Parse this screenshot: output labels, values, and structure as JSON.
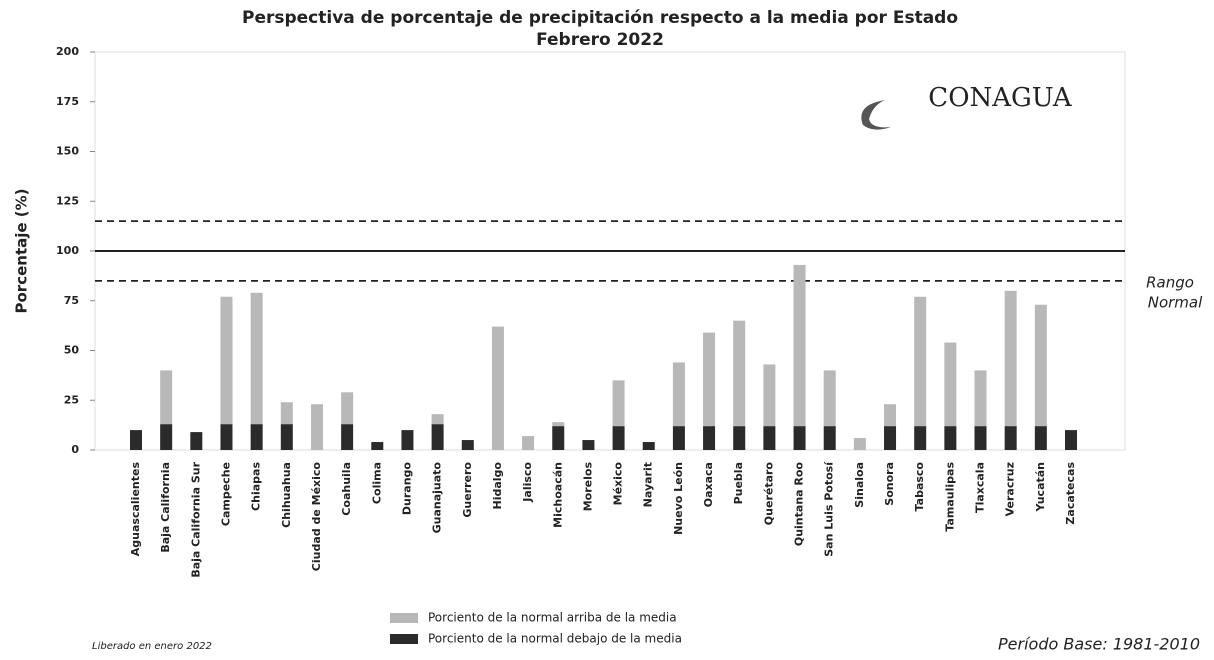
{
  "chart_data": {
    "type": "stacked_bar",
    "title": [
      "Perspectiva de porcentaje de precipitación respecto a la media por Estado",
      "Febrero 2022"
    ],
    "y_label": "Porcentaje (%)",
    "categories": [
      "Aguascalientes",
      "Baja California",
      "Baja California Sur",
      "Campeche",
      "Chiapas",
      "Chihuahua",
      "Ciudad de México",
      "Coahuila",
      "Colima",
      "Durango",
      "Guanajuato",
      "Guerrero",
      "Hidalgo",
      "Jalisco",
      "Michoacán",
      "Morelos",
      "México",
      "Nayarit",
      "Nuevo León",
      "Oaxaca",
      "Puebla",
      "Querétaro",
      "Quintana Roo",
      "San Luis Potosí",
      "Sinaloa",
      "Sonora",
      "Tabasco",
      "Tamaulipas",
      "Tlaxcala",
      "Veracruz",
      "Yucatán",
      "Zacatecas"
    ],
    "series": [
      {
        "name": "Porciento de la normal debajo de la media",
        "color": "#2b2b2b",
        "values": [
          10,
          13,
          9,
          13,
          13,
          13,
          0,
          13,
          4,
          10,
          13,
          5,
          0,
          0,
          12,
          5,
          12,
          4,
          12,
          12,
          12,
          12,
          12,
          12,
          0,
          12,
          12,
          12,
          12,
          12,
          12,
          10
        ]
      },
      {
        "name": "Porciento de la normal arriba de la media",
        "color": "#b8b8b8",
        "values": [
          0,
          27,
          0,
          64,
          66,
          11,
          23,
          16,
          0,
          0,
          5,
          0,
          62,
          7,
          2,
          0,
          23,
          0,
          32,
          47,
          53,
          31,
          81,
          28,
          6,
          11,
          65,
          42,
          28,
          68,
          61,
          0
        ]
      }
    ],
    "ylim": [
      0,
      200
    ],
    "yticks": [
      0,
      25,
      50,
      75,
      100,
      125,
      150,
      175,
      200
    ],
    "reference_lines": [
      {
        "value": 115,
        "style": "dashed"
      },
      {
        "value": 100,
        "style": "solid"
      },
      {
        "value": 85,
        "style": "dashed"
      }
    ],
    "annotation": [
      "Rango",
      "Normal"
    ],
    "logo": "CONAGUA",
    "footer_left": "Liberado en enero 2022",
    "footer_right": "Período Base: 1981-2010"
  }
}
